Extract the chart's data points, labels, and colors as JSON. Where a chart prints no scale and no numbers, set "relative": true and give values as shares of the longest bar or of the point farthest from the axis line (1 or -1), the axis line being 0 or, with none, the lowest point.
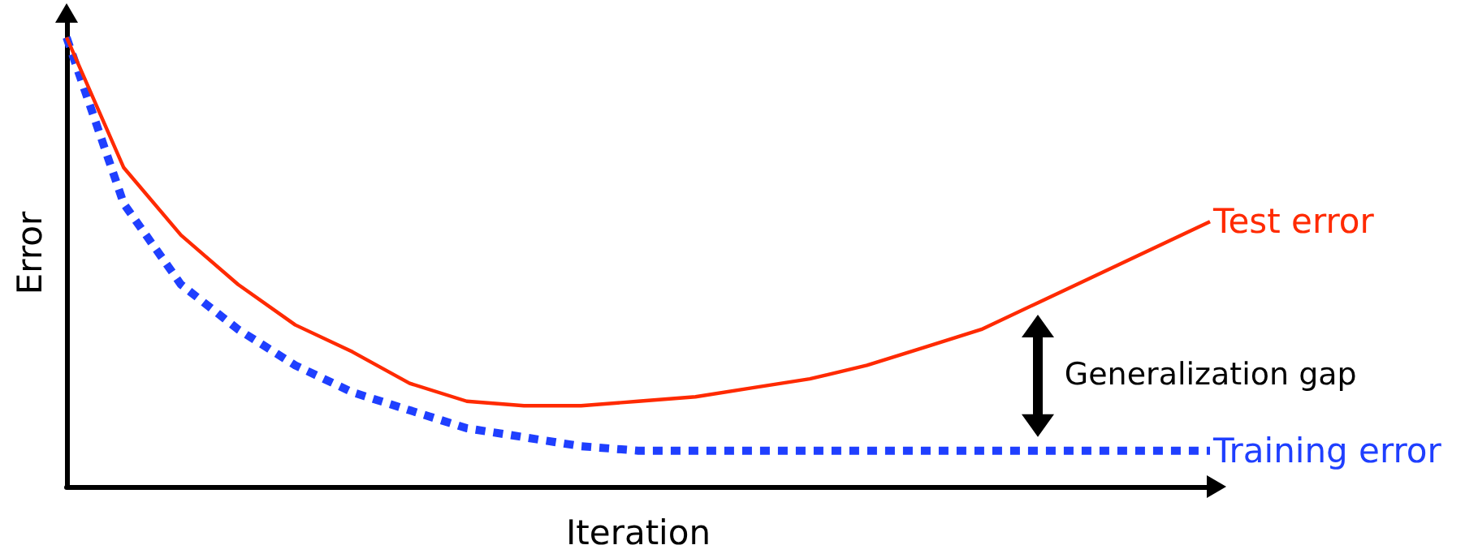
{
  "chart_data": {
    "type": "line",
    "relative": true,
    "xlabel": "Iteration",
    "ylabel": "Error",
    "grid": false,
    "legend": false,
    "marker": "none",
    "categories": [
      null,
      null,
      null,
      null,
      null,
      null,
      null,
      null,
      null,
      null,
      null,
      null,
      null,
      null,
      null,
      null,
      null,
      null,
      null,
      null,
      null
    ],
    "series": [
      {
        "name": "Test error",
        "color": "#ff2a00",
        "line_style": "solid",
        "values": [
          1.0,
          0.71,
          0.56,
          0.45,
          0.36,
          0.3,
          0.23,
          0.19,
          0.18,
          0.18,
          0.19,
          0.2,
          0.22,
          0.24,
          0.27,
          0.31,
          0.35,
          0.41,
          0.47,
          0.53,
          0.59
        ]
      },
      {
        "name": "Training error",
        "color": "#1f3fff",
        "line_style": "dashed",
        "values": [
          1.0,
          0.63,
          0.45,
          0.35,
          0.27,
          0.21,
          0.17,
          0.13,
          0.11,
          0.09,
          0.08,
          0.08,
          0.08,
          0.08,
          0.08,
          0.08,
          0.08,
          0.08,
          0.08,
          0.08,
          0.08
        ]
      }
    ],
    "annotations": [
      "Generalization gap"
    ]
  }
}
